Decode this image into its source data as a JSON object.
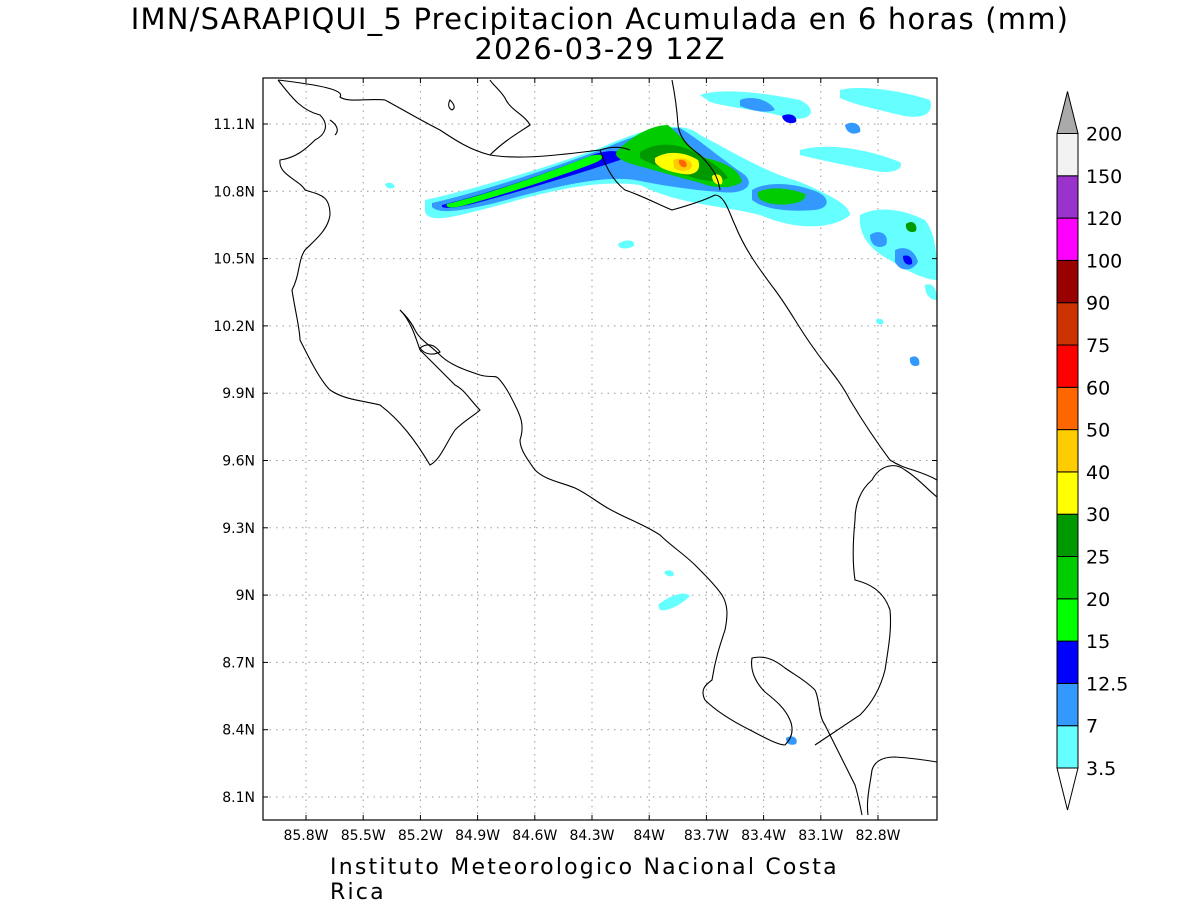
{
  "header": {
    "title_line1": "IMN/SARAPIQUI_5 Precipitacion Acumulada en 6 horas (mm)",
    "title_line2": "2026-03-29 12Z"
  },
  "footer": {
    "credit": "Instituto Meteorologico Nacional Costa Rica"
  },
  "map": {
    "lat_ticks": [
      "11.1N",
      "10.8N",
      "10.5N",
      "10.2N",
      "9.9N",
      "9.6N",
      "9.3N",
      "9N",
      "8.7N",
      "8.4N",
      "8.1N"
    ],
    "lon_ticks": [
      "85.8W",
      "85.5W",
      "85.2W",
      "84.9W",
      "84.6W",
      "84.3W",
      "84W",
      "83.7W",
      "83.4W",
      "83.1W",
      "82.8W"
    ],
    "grid": "dotted"
  },
  "colorbar": {
    "labels": [
      "3.5",
      "7",
      "12.5",
      "15",
      "20",
      "25",
      "30",
      "40",
      "50",
      "60",
      "75",
      "90",
      "100",
      "120",
      "150",
      "200"
    ],
    "colors": [
      "#66ffff",
      "#3399ff",
      "#0000ff",
      "#00ff00",
      "#00cc00",
      "#009900",
      "#ffff00",
      "#ffcc00",
      "#ff6600",
      "#ff0000",
      "#cc3300",
      "#990000",
      "#ff00ff",
      "#9933cc",
      "#f2f2f2",
      "#aaaaaa"
    ]
  }
}
